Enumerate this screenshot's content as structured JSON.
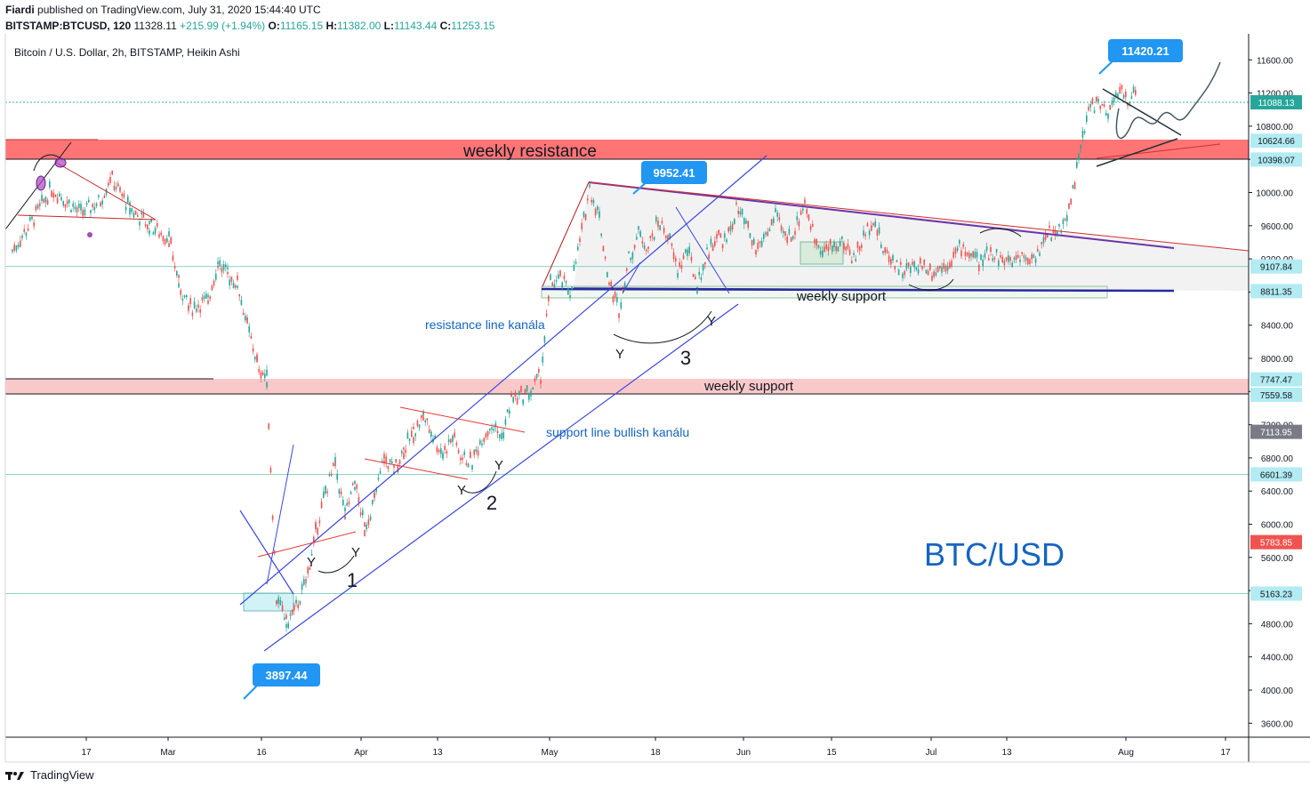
{
  "header": {
    "author": "Fiardi",
    "published": "published on TradingView.com, July 31, 2020 15:44:40 UTC",
    "symbol": "BITSTAMP:BTCUSD, 120",
    "last": "11328.11",
    "change": "+215.99 (+1.94%)",
    "o_label": "O:",
    "o_value": "11165.15",
    "h_label": "H:",
    "h_value": "11382.00",
    "l_label": "L:",
    "l_value": "11143.44",
    "c_label": "C:",
    "c_value": "11253.15"
  },
  "chart_title": "Bitcoin / U.S. Dollar, 2h, BITSTAMP, Heikin Ashi",
  "footer": {
    "brand": "TradingView"
  },
  "colors": {
    "up": "#26a69a",
    "down": "#ef5350",
    "resistance_zone": "#ff5d5d",
    "support_zone": "#f8bcbc",
    "channel": "#3b47e0",
    "callout": "#2196f3",
    "triangle": "#6b35a8",
    "text_blue": "#1565c0",
    "price_tag": "#26a69a"
  },
  "chart_data": {
    "type": "candlestick",
    "style": "Heikin Ashi",
    "symbol": "BTC/USD",
    "x_ticks": [
      "17",
      "Mar",
      "16",
      "Apr",
      "13",
      "May",
      "18",
      "Jun",
      "15",
      "Jul",
      "13",
      "Aug",
      "17"
    ],
    "y_ticks": [
      3600,
      4000,
      4400,
      4800,
      5200,
      5600,
      6000,
      6400,
      6800,
      7200,
      7600,
      8000,
      8400,
      8800,
      9200,
      9600,
      10000,
      10400,
      10800,
      11200,
      11600
    ],
    "price_path": [
      [
        0,
        9300
      ],
      [
        2,
        9650
      ],
      [
        4,
        10050
      ],
      [
        5,
        9950
      ],
      [
        7,
        9750
      ],
      [
        9,
        9900
      ],
      [
        10,
        10200
      ],
      [
        12,
        9800
      ],
      [
        14,
        9600
      ],
      [
        16,
        9450
      ],
      [
        17,
        8900
      ],
      [
        18,
        8600
      ],
      [
        20,
        8700
      ],
      [
        21,
        9150
      ],
      [
        22,
        9000
      ],
      [
        23,
        8900
      ],
      [
        24,
        8400
      ],
      [
        25,
        7950
      ],
      [
        26,
        7750
      ],
      [
        27,
        5100
      ],
      [
        28,
        4800
      ],
      [
        29,
        5000
      ],
      [
        30,
        5300
      ],
      [
        31,
        5900
      ],
      [
        32,
        6400
      ],
      [
        33,
        6700
      ],
      [
        34,
        6100
      ],
      [
        35,
        6500
      ],
      [
        36,
        5950
      ],
      [
        37,
        6300
      ],
      [
        38,
        6800
      ],
      [
        39,
        6650
      ],
      [
        40,
        6900
      ],
      [
        41,
        7100
      ],
      [
        42,
        7300
      ],
      [
        43,
        7050
      ],
      [
        44,
        6850
      ],
      [
        45,
        7050
      ],
      [
        46,
        6800
      ],
      [
        47,
        6750
      ],
      [
        48,
        7050
      ],
      [
        49,
        7200
      ],
      [
        50,
        7050
      ],
      [
        51,
        7500
      ],
      [
        53,
        7600
      ],
      [
        54,
        7800
      ],
      [
        55,
        8900
      ],
      [
        56,
        8950
      ],
      [
        57,
        8800
      ],
      [
        58,
        9400
      ],
      [
        59,
        10050
      ],
      [
        60,
        9700
      ],
      [
        61,
        8900
      ],
      [
        62,
        8600
      ],
      [
        63,
        9200
      ],
      [
        64,
        9500
      ],
      [
        65,
        9350
      ],
      [
        66,
        9650
      ],
      [
        67,
        9500
      ],
      [
        68,
        9050
      ],
      [
        69,
        9300
      ],
      [
        70,
        8900
      ],
      [
        71,
        9250
      ],
      [
        72,
        9500
      ],
      [
        73,
        9400
      ],
      [
        74,
        9800
      ],
      [
        75,
        9600
      ],
      [
        76,
        9300
      ],
      [
        77,
        9500
      ],
      [
        78,
        9700
      ],
      [
        79,
        9450
      ],
      [
        80,
        9550
      ],
      [
        81,
        9900
      ],
      [
        82,
        9450
      ],
      [
        83,
        9300
      ],
      [
        84,
        9350
      ],
      [
        85,
        9400
      ],
      [
        86,
        9200
      ],
      [
        87,
        9450
      ],
      [
        88,
        9700
      ],
      [
        89,
        9300
      ],
      [
        90,
        9200
      ],
      [
        91,
        9050
      ],
      [
        92,
        9100
      ],
      [
        93,
        9150
      ],
      [
        94,
        9050
      ],
      [
        95,
        9100
      ],
      [
        96,
        9200
      ],
      [
        97,
        9350
      ],
      [
        98,
        9250
      ],
      [
        99,
        9150
      ],
      [
        100,
        9300
      ],
      [
        101,
        9200
      ],
      [
        102,
        9150
      ],
      [
        103,
        9250
      ],
      [
        104,
        9200
      ],
      [
        105,
        9300
      ],
      [
        106,
        9500
      ],
      [
        107,
        9550
      ],
      [
        108,
        9800
      ],
      [
        109,
        10400
      ],
      [
        110,
        11000
      ],
      [
        111,
        11100
      ],
      [
        112,
        10900
      ],
      [
        113,
        11250
      ],
      [
        114,
        11100
      ],
      [
        115,
        11300
      ]
    ],
    "price_labels": [
      {
        "value": "11088.13",
        "price": 11088,
        "color": "#26a69a"
      },
      {
        "value": "10624.66",
        "price": 10625,
        "color": "#b2ebf2"
      },
      {
        "value": "10398.07",
        "price": 10398,
        "color": "#b2ebf2"
      },
      {
        "value": "9107.84",
        "price": 9108,
        "color": "#b2ebf2"
      },
      {
        "value": "8811.35",
        "price": 8811,
        "color": "#b2ebf2"
      },
      {
        "value": "7747.47",
        "price": 7747,
        "color": "#b2ebf2"
      },
      {
        "value": "7559.58",
        "price": 7560,
        "color": "#b2ebf2"
      },
      {
        "value": "7113.95",
        "price": 7114,
        "color": "#787b86"
      },
      {
        "value": "6601.39",
        "price": 6601,
        "color": "#b2ebf2"
      },
      {
        "value": "5783.85",
        "price": 5784,
        "color": "#ef5350"
      },
      {
        "value": "5163.23",
        "price": 5163,
        "color": "#b2ebf2"
      }
    ],
    "callouts": [
      {
        "text": "11420.21",
        "price": 11420
      },
      {
        "text": "9952.41",
        "price": 9952
      },
      {
        "text": "3897.44",
        "price": 3897
      }
    ],
    "annotations": [
      {
        "text": "weekly resistance"
      },
      {
        "text": "weekly support"
      },
      {
        "text": "weekly support"
      },
      {
        "text": "resistance line kanála"
      },
      {
        "text": "support line bullish kanálu"
      },
      {
        "text": "BTC/USD"
      },
      {
        "text": "1"
      },
      {
        "text": "2"
      },
      {
        "text": "3"
      },
      {
        "text": "Y"
      },
      {
        "text": "Y"
      },
      {
        "text": "Y"
      },
      {
        "text": "Y"
      },
      {
        "text": "Y"
      },
      {
        "text": "Y"
      }
    ]
  }
}
